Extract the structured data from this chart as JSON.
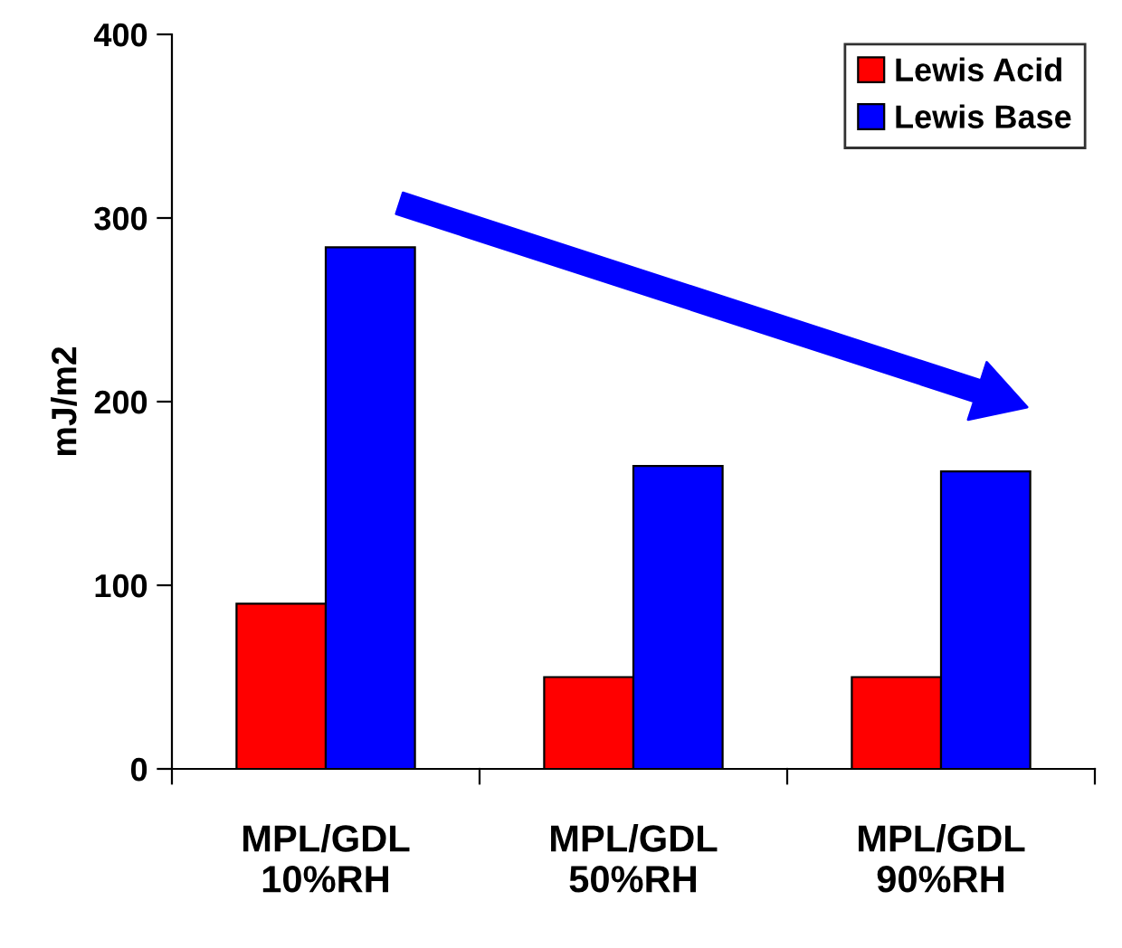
{
  "chart_data": {
    "type": "bar",
    "ylabel": "mJ/m2",
    "categories": [
      "MPL/GDL\n10%RH",
      "MPL/GDL\n50%RH",
      "MPL/GDL\n90%RH"
    ],
    "series": [
      {
        "name": "Lewis Acid",
        "color": "#ff0000",
        "values": [
          90,
          50,
          50
        ]
      },
      {
        "name": "Lewis Base",
        "color": "#0000ff",
        "values": [
          284,
          165,
          162
        ]
      }
    ],
    "ylim": [
      0,
      400
    ],
    "yticks": [
      0,
      100,
      200,
      300,
      400
    ],
    "grid": false,
    "legend": "top right"
  }
}
